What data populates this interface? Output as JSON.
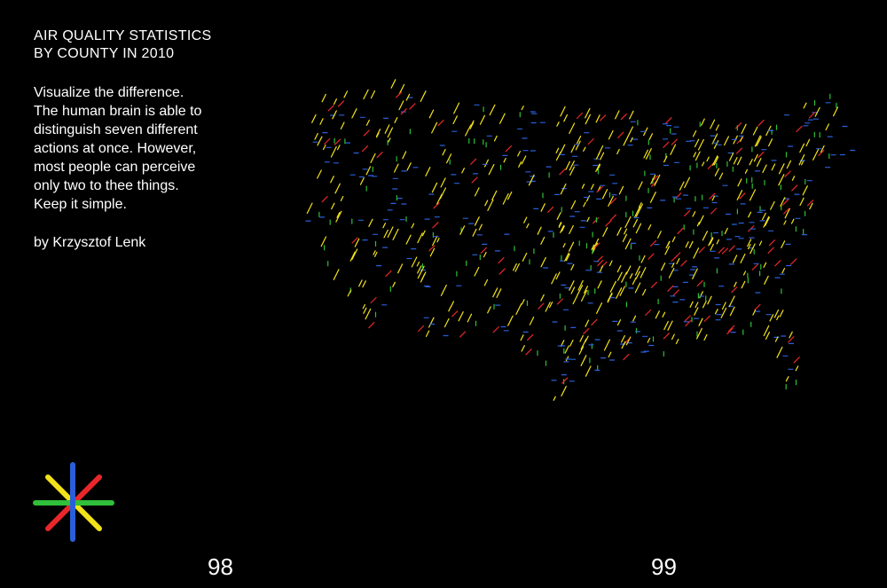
{
  "title": {
    "line1": "AIR QUALITY STATISTICS",
    "line2": "BY COUNTY IN 2010"
  },
  "body": {
    "lines": [
      "Visualize the difference.",
      "The human brain is able to",
      "distinguish seven different",
      "actions at once. However,",
      "most people can perceive",
      "only two to thee things.",
      "Keep it simple."
    ]
  },
  "byline": "by Krzysztof Lenk",
  "page_numbers": {
    "left": "98",
    "right": "99"
  },
  "colors": {
    "background": "#000000",
    "text": "#ffffff",
    "yellow": "#f2e21a",
    "red": "#e8272b",
    "green": "#2fbf3a",
    "blue": "#2a5fd8"
  },
  "logo_icon": "asterisk-legend-icon",
  "map_icon": "us-county-air-quality-map"
}
